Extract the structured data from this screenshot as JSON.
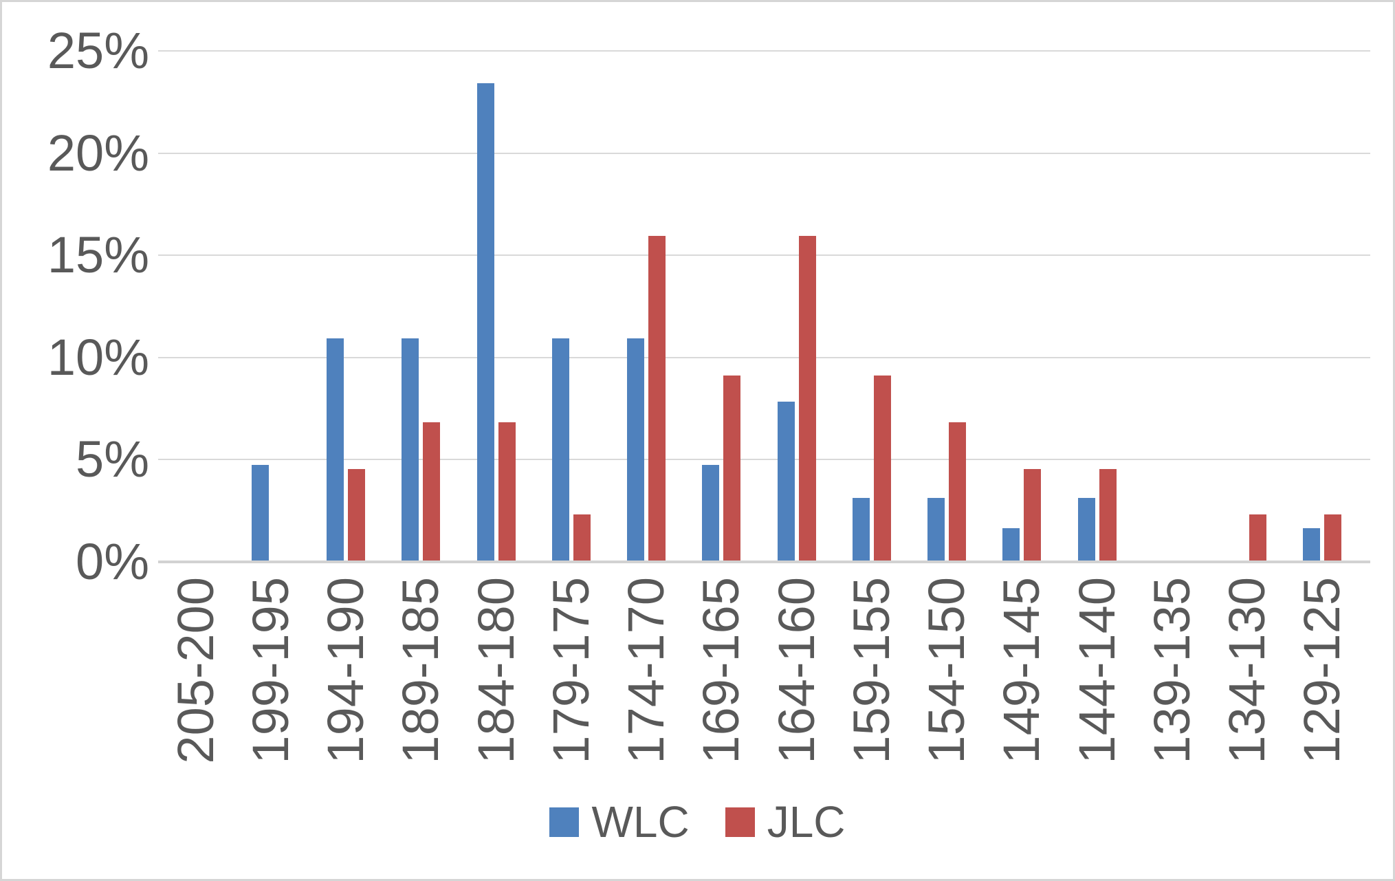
{
  "chart_data": {
    "type": "bar",
    "title": "",
    "xlabel": "",
    "ylabel": "",
    "categories": [
      "205-200",
      "199-195",
      "194-190",
      "189-185",
      "184-180",
      "179-175",
      "174-170",
      "169-165",
      "164-160",
      "159-155",
      "154-150",
      "149-145",
      "144-140",
      "139-135",
      "134-130",
      "129-125"
    ],
    "series": [
      {
        "name": "WLC",
        "color": "#4f81bd",
        "values": [
          0,
          4.7,
          10.9,
          10.9,
          23.4,
          10.9,
          10.9,
          4.7,
          7.8,
          3.1,
          3.1,
          1.6,
          3.1,
          0,
          0,
          1.6
        ]
      },
      {
        "name": "JLC",
        "color": "#c0504d",
        "values": [
          0,
          0,
          4.5,
          6.8,
          6.8,
          2.3,
          15.9,
          9.1,
          15.9,
          9.1,
          6.8,
          4.5,
          4.5,
          0,
          2.3,
          2.3
        ]
      }
    ],
    "ylim": [
      0,
      25
    ],
    "y_ticks": [
      "0%",
      "5%",
      "10%",
      "15%",
      "20%",
      "25%"
    ],
    "grid": true,
    "legend_position": "bottom",
    "x_tick_rotation_deg": -90
  },
  "colors": {
    "text": "#595959",
    "gridline": "#d9d9d9",
    "axis_line": "#d2d2d2",
    "background": "#ffffff",
    "border": "#d6d6d6"
  }
}
